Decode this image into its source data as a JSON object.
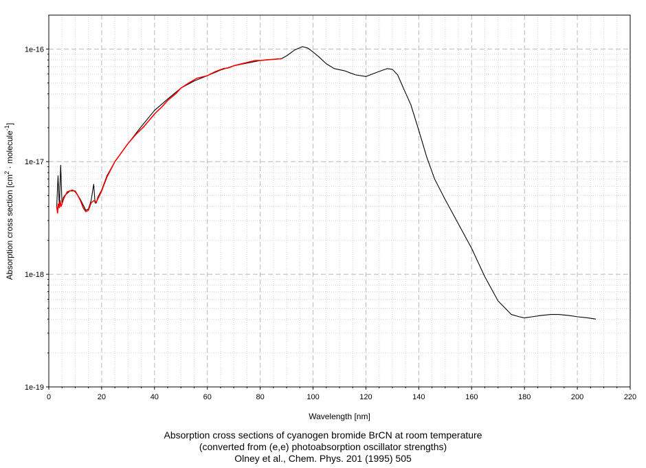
{
  "chart_data": {
    "type": "line",
    "xlabel": "Wavelength [nm]",
    "ylabel_prefix": "Absorption cross section [cm",
    "ylabel_sup1": "2",
    "ylabel_mid": " · molecule",
    "ylabel_sup2": "-1",
    "ylabel_suffix": "]",
    "xlim": [
      0,
      220
    ],
    "ylim": [
      1e-19,
      2e-16
    ],
    "yscale": "log",
    "grid": true,
    "x_ticks": [
      "0",
      "20",
      "40",
      "60",
      "80",
      "100",
      "120",
      "140",
      "160",
      "180",
      "200",
      "220"
    ],
    "y_ticks": [
      {
        "value": 1e-19,
        "label": "1e-19"
      },
      {
        "value": 1e-18,
        "label": "1e-18"
      },
      {
        "value": 1e-17,
        "label": "1e-17"
      },
      {
        "value": 1e-16,
        "label": "1e-16"
      }
    ],
    "series": [
      {
        "color": "#000000",
        "x": [
          3.0,
          3.5,
          4.0,
          4.5,
          5.0,
          5.5,
          6,
          8,
          10,
          12,
          14,
          15,
          16,
          17,
          17.5,
          18,
          18.5,
          20,
          22,
          25,
          30,
          35,
          40,
          45,
          50,
          55,
          60,
          65,
          70,
          75,
          80,
          85,
          88,
          90,
          93,
          96,
          98,
          100,
          102,
          105,
          108,
          112,
          116,
          120,
          124,
          128,
          130,
          132,
          134,
          137,
          140,
          143,
          146,
          150,
          155,
          160,
          165,
          170,
          175,
          178,
          180,
          183,
          186,
          190,
          193,
          197,
          200,
          204,
          207
        ],
        "y": [
          4e-18,
          7.5e-18,
          4e-18,
          9.3e-18,
          4.2e-18,
          4.8e-18,
          5e-18,
          5.5e-18,
          5.5e-18,
          4.6e-18,
          3.7e-18,
          3.8e-18,
          4.5e-18,
          6.3e-18,
          4.3e-18,
          4.3e-18,
          4.8e-18,
          5.6e-18,
          7.5e-18,
          1e-17,
          1.45e-17,
          2.05e-17,
          2.85e-17,
          3.6e-17,
          4.5e-17,
          5.2e-17,
          5.8e-17,
          6.5e-17,
          7.1e-17,
          7.5e-17,
          7.9e-17,
          8.1e-17,
          8.2e-17,
          8.7e-17,
          9.8e-17,
          1.05e-16,
          1.02e-16,
          9.4e-17,
          8.6e-17,
          7.4e-17,
          6.7e-17,
          6.4e-17,
          5.9e-17,
          5.7e-17,
          6.2e-17,
          6.7e-17,
          6.6e-17,
          5.9e-17,
          4.6e-17,
          3.2e-17,
          1.9e-17,
          1.1e-17,
          7e-18,
          4.6e-18,
          2.8e-18,
          1.7e-18,
          9.5e-19,
          5.8e-19,
          4.4e-19,
          4.2e-19,
          4.1e-19,
          4.2e-19,
          4.3e-19,
          4.4e-19,
          4.4e-19,
          4.3e-19,
          4.2e-19,
          4.1e-19,
          4e-19
        ]
      },
      {
        "color": "#ff0000",
        "x": [
          3.0,
          3.3,
          3.6,
          4.0,
          4.3,
          4.6,
          5.0,
          5.5,
          6,
          7,
          8,
          9,
          10,
          11,
          12,
          13,
          14,
          15,
          16,
          17,
          18,
          19,
          20,
          22,
          25,
          28,
          30,
          33,
          36,
          40,
          43,
          45,
          48,
          50,
          53,
          56,
          60,
          63,
          66,
          68,
          70,
          72,
          75,
          78,
          80,
          82,
          85,
          88
        ],
        "y": [
          4e-18,
          3.5e-18,
          4.2e-18,
          3.9e-18,
          4.5e-18,
          4e-18,
          4.2e-18,
          4.6e-18,
          4.9e-18,
          5.4e-18,
          5.5e-18,
          5.6e-18,
          5.4e-18,
          5e-18,
          4.5e-18,
          3.9e-18,
          3.6e-18,
          3.7e-18,
          4.3e-18,
          4.5e-18,
          4.4e-18,
          4.9e-18,
          5.5e-18,
          7.3e-18,
          1e-17,
          1.25e-17,
          1.45e-17,
          1.75e-17,
          2.05e-17,
          2.65e-17,
          3.1e-17,
          3.5e-17,
          4e-17,
          4.5e-17,
          5e-17,
          5.5e-17,
          5.8e-17,
          6.3e-17,
          6.7e-17,
          6.8e-17,
          7.1e-17,
          7.3e-17,
          7.6e-17,
          7.9e-17,
          7.9e-17,
          8e-17,
          8.1e-17,
          8.2e-17
        ]
      }
    ]
  },
  "caption": {
    "line1": "Absorption cross sections of cyanogen bromide BrCN at room temperature",
    "line2": "(converted from (e,e) photoabsorption oscillator strengths)",
    "line3": "Olney et al., Chem. Phys. 201 (1995) 505"
  }
}
